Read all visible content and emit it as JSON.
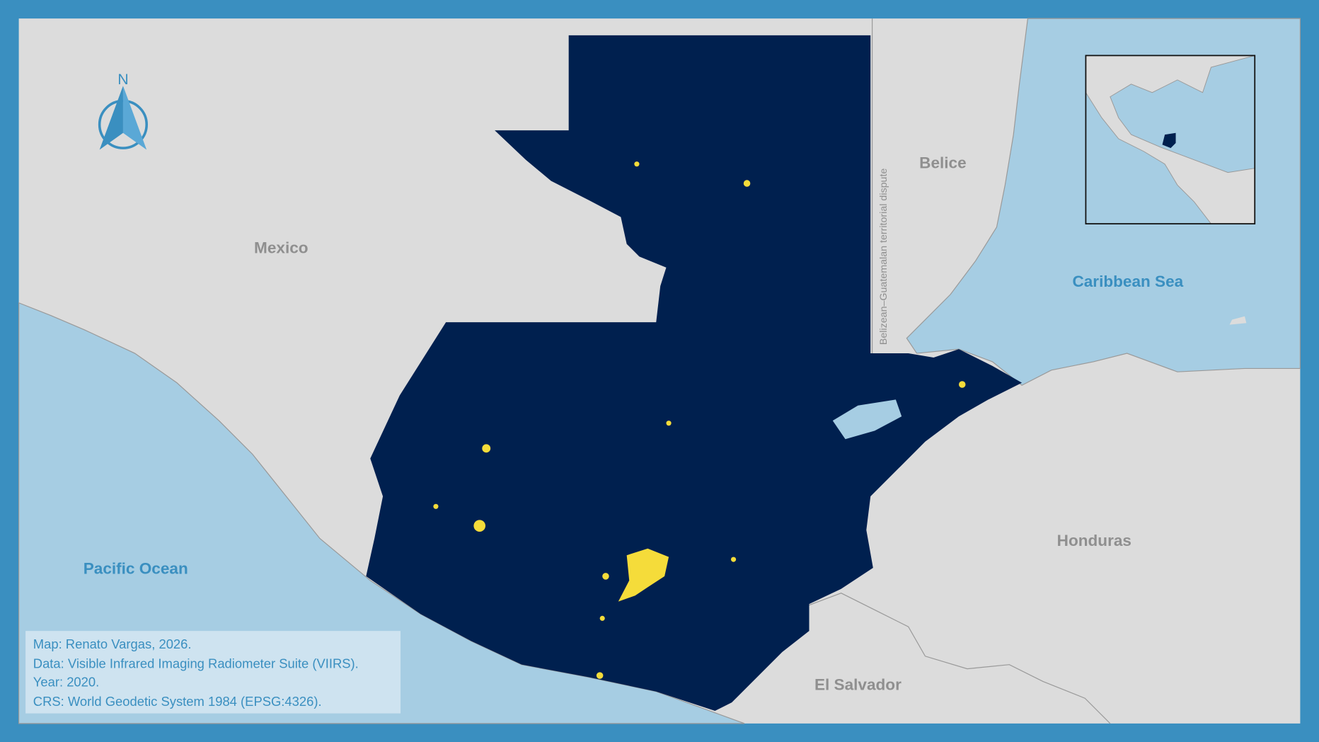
{
  "north_arrow": {
    "label": "N"
  },
  "labels": {
    "countries": [
      "Mexico",
      "Belice",
      "Honduras",
      "El Salvador"
    ],
    "water": [
      "Pacific Ocean",
      "Caribbean Sea"
    ],
    "dispute": "Belizean–Guatemalan territorial dispute"
  },
  "credits": [
    "Map: Renato Vargas, 2026.",
    "Data: Visible Infrared Imaging Radiometer Suite (VIIRS).",
    "Year: 2020.",
    "CRS: World Geodetic System 1984 (EPSG:4326)."
  ]
}
